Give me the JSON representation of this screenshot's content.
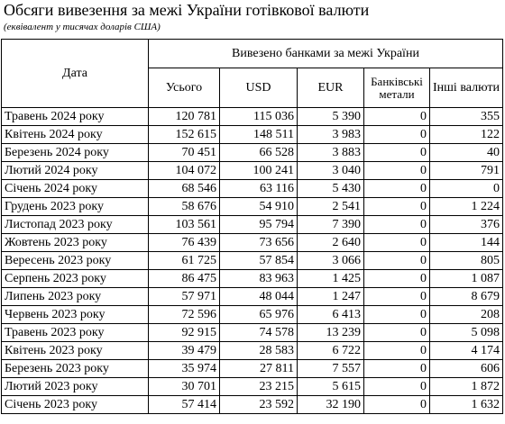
{
  "title": "Обсяги вивезення за межі України готівкової валюти",
  "subtitle": "(еквівалент у тисячах доларів США)",
  "table": {
    "date_header": "Дата",
    "group_header": "Вивезено банками за межі України",
    "columns": [
      "Усього",
      "USD",
      "EUR",
      "Банківські метали",
      "Інші валюти"
    ],
    "rows": [
      {
        "date": "Травень 2024 року",
        "total": "120 781",
        "usd": "115 036",
        "eur": "5 390",
        "metals": "0",
        "other": "355"
      },
      {
        "date": "Квітень 2024 року",
        "total": "152 615",
        "usd": "148 511",
        "eur": "3 983",
        "metals": "0",
        "other": "122"
      },
      {
        "date": "Березень 2024 року",
        "total": "70 451",
        "usd": "66 528",
        "eur": "3 883",
        "metals": "0",
        "other": "40"
      },
      {
        "date": "Лютий 2024 року",
        "total": "104 072",
        "usd": "100 241",
        "eur": "3 040",
        "metals": "0",
        "other": "791"
      },
      {
        "date": "Січень 2024 року",
        "total": "68 546",
        "usd": "63 116",
        "eur": "5 430",
        "metals": "0",
        "other": "0"
      },
      {
        "date": "Грудень 2023 року",
        "total": "58 676",
        "usd": "54 910",
        "eur": "2 541",
        "metals": "0",
        "other": "1 224"
      },
      {
        "date": "Листопад 2023 року",
        "total": "103 561",
        "usd": "95 794",
        "eur": "7 390",
        "metals": "0",
        "other": "376"
      },
      {
        "date": "Жовтень 2023 року",
        "total": "76 439",
        "usd": "73 656",
        "eur": "2 640",
        "metals": "0",
        "other": "144"
      },
      {
        "date": "Вересень 2023 року",
        "total": "61 725",
        "usd": "57 854",
        "eur": "3 066",
        "metals": "0",
        "other": "805"
      },
      {
        "date": "Серпень 2023 року",
        "total": "86 475",
        "usd": "83 963",
        "eur": "1 425",
        "metals": "0",
        "other": "1 087"
      },
      {
        "date": "Липень 2023 року",
        "total": "57 971",
        "usd": "48 044",
        "eur": "1 247",
        "metals": "0",
        "other": "8 679"
      },
      {
        "date": "Червень 2023 року",
        "total": "72 596",
        "usd": "65 976",
        "eur": "6 413",
        "metals": "0",
        "other": "208"
      },
      {
        "date": "Травень 2023 року",
        "total": "92 915",
        "usd": "74 578",
        "eur": "13 239",
        "metals": "0",
        "other": "5 098"
      },
      {
        "date": "Квітень 2023 року",
        "total": "39 479",
        "usd": "28 583",
        "eur": "6 722",
        "metals": "0",
        "other": "4 174"
      },
      {
        "date": "Березень 2023 року",
        "total": "35 974",
        "usd": "27 811",
        "eur": "7 557",
        "metals": "0",
        "other": "606"
      },
      {
        "date": "Лютий 2023 року",
        "total": "30 701",
        "usd": "23 215",
        "eur": "5 615",
        "metals": "0",
        "other": "1 872"
      },
      {
        "date": "Січень 2023 року",
        "total": "57 414",
        "usd": "23 592",
        "eur": "32 190",
        "metals": "0",
        "other": "1 632"
      }
    ]
  }
}
